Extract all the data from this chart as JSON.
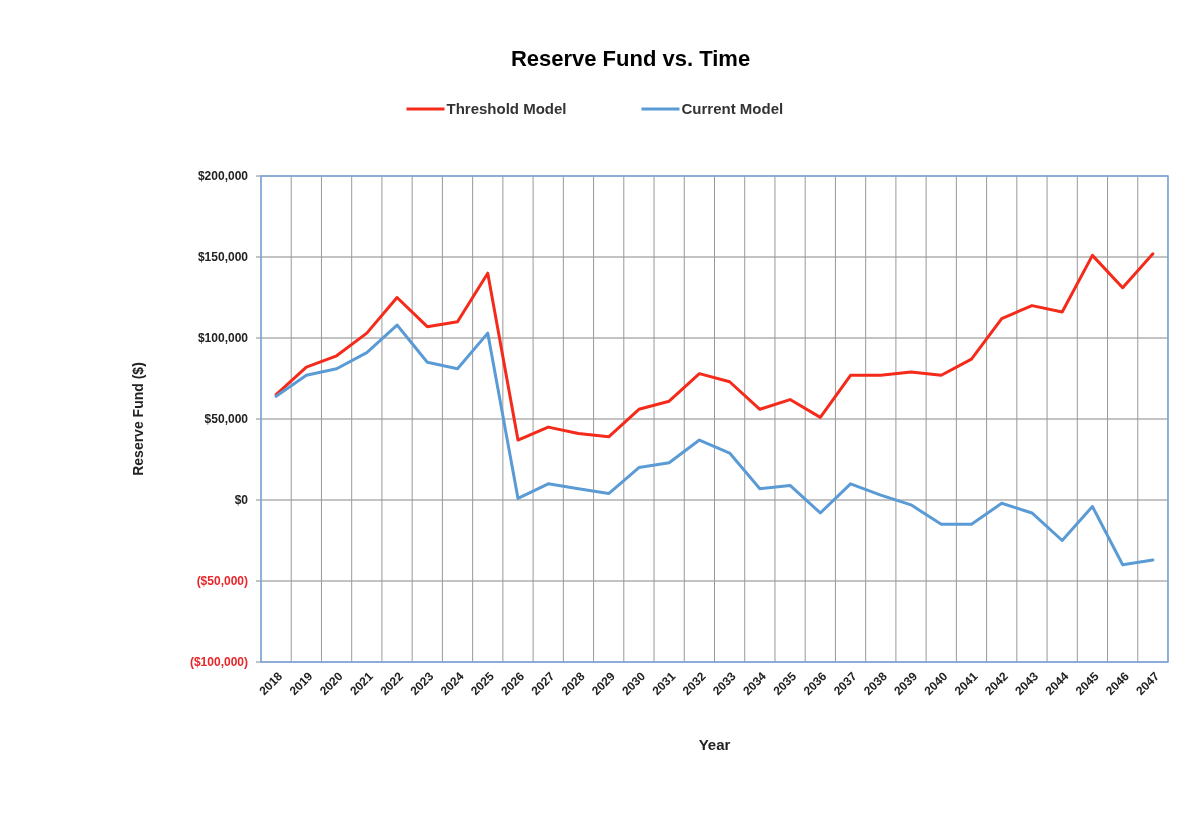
{
  "chart_data": {
    "type": "line",
    "title": "Reserve Fund vs. Time",
    "xlabel": "Year",
    "ylabel": "Reserve Fund ($)",
    "categories": [
      "2018",
      "2019",
      "2020",
      "2021",
      "2022",
      "2023",
      "2024",
      "2025",
      "2026",
      "2027",
      "2028",
      "2029",
      "2030",
      "2031",
      "2032",
      "2033",
      "2034",
      "2035",
      "2036",
      "2037",
      "2038",
      "2039",
      "2040",
      "2041",
      "2042",
      "2043",
      "2044",
      "2045",
      "2046",
      "2047"
    ],
    "series": [
      {
        "name": "Threshold Model",
        "color": "#f42a1a",
        "values": [
          65000,
          82000,
          89000,
          103000,
          125000,
          107000,
          110000,
          140000,
          37000,
          45000,
          41000,
          39000,
          56000,
          61000,
          78000,
          73000,
          56000,
          62000,
          51000,
          77000,
          77000,
          79000,
          77000,
          87000,
          112000,
          120000,
          116000,
          151000,
          131000,
          152000
        ]
      },
      {
        "name": "Current Model",
        "color": "#5b9bd5",
        "values": [
          64000,
          77000,
          81000,
          91000,
          108000,
          85000,
          81000,
          103000,
          1000,
          10000,
          7000,
          4000,
          20000,
          23000,
          37000,
          29000,
          7000,
          9000,
          -8000,
          10000,
          3000,
          -3000,
          -15000,
          -15000,
          -2000,
          -8000,
          -25000,
          -4000,
          -40000,
          -37000
        ]
      }
    ],
    "ylim": [
      -100000,
      200000
    ],
    "yticks": [
      {
        "value": -100000,
        "label": "($100,000)"
      },
      {
        "value": -50000,
        "label": "($50,000)"
      },
      {
        "value": 0,
        "label": "$0"
      },
      {
        "value": 50000,
        "label": "$50,000"
      },
      {
        "value": 100000,
        "label": "$100,000"
      },
      {
        "value": 150000,
        "label": "$150,000"
      },
      {
        "value": 200000,
        "label": "$200,000"
      }
    ],
    "grid": true,
    "legend": "top",
    "marker": "none",
    "line_style": "solid"
  }
}
